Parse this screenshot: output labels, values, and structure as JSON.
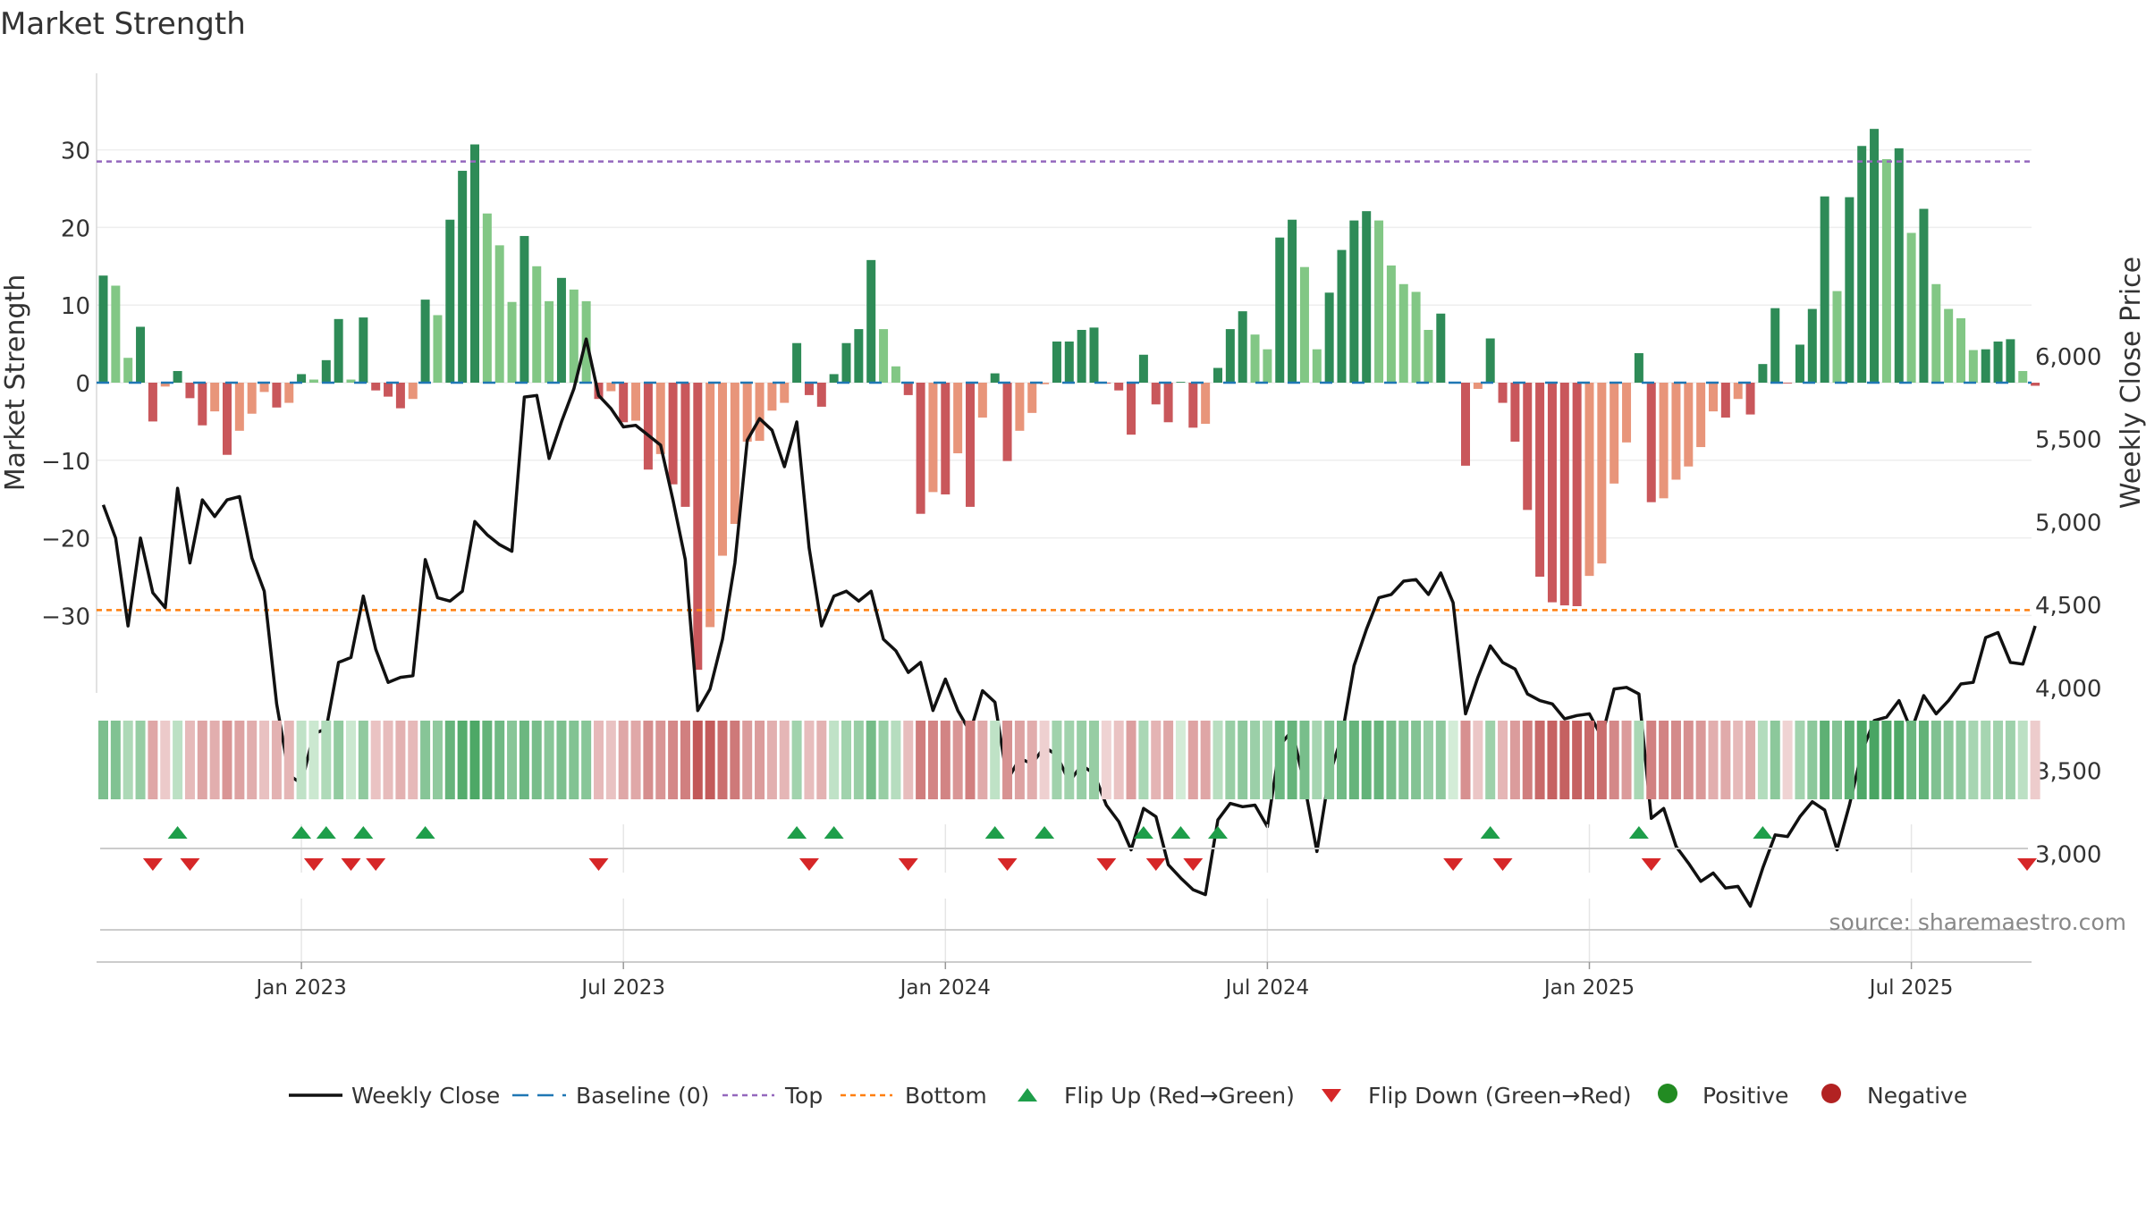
{
  "title": "Market Strength",
  "source": "source: sharemaestro.com",
  "colors": {
    "pos_dark": "#2e8b57",
    "pos_light": "#82c785",
    "neg_dark": "#c9575b",
    "neg_light": "#e8957a",
    "line": "#111111",
    "baseline": "#1f77b4",
    "top": "#9467bd",
    "bottom": "#ff7f0e",
    "flip_up": "#1e9e4a",
    "flip_down": "#d62728",
    "positive": "#228b22",
    "negative": "#b22222"
  },
  "chart_data": {
    "type": "bar+line",
    "title": "Market Strength",
    "ylabel": "Market Strength",
    "y2label": "Weekly Close Price",
    "ylim": [
      -40,
      40
    ],
    "y2lim": [
      2550,
      6200
    ],
    "yticks": [
      -30,
      -20,
      -10,
      0,
      10,
      20,
      30
    ],
    "yticklabels": [
      "−30",
      "−20",
      "−10",
      "0",
      "10",
      "20",
      "30"
    ],
    "y2ticks": [
      3000,
      3500,
      4000,
      4500,
      5000,
      5500,
      6000
    ],
    "y2ticklabels": [
      "3,000",
      "3,500",
      "4,000",
      "4,500",
      "5,000",
      "5,500",
      "6,000"
    ],
    "top_level": 28.5,
    "bottom_level": -29.3,
    "x_range_weeks": [
      0,
      157
    ],
    "xticks": [
      16,
      42,
      68,
      94,
      120,
      146
    ],
    "xticklabels": [
      "Jan 2023",
      "Jul 2023",
      "Jan 2024",
      "Jul 2024",
      "Jan 2025",
      "Jul 2025"
    ],
    "strength": [
      13.8,
      12.5,
      3.2,
      7.2,
      -5,
      -0.5,
      1.5,
      -2,
      -5.5,
      -3.7,
      -9.3,
      -6.2,
      -4,
      -1.2,
      -3.2,
      -2.6,
      1.1,
      0.4,
      2.9,
      8.2,
      0.4,
      8.4,
      -1,
      -1.8,
      -3.3,
      -2.1,
      10.7,
      8.7,
      21,
      27.3,
      30.7,
      21.8,
      17.7,
      10.4,
      18.9,
      15,
      10.5,
      13.5,
      12,
      10.5,
      -2.1,
      -1.1,
      -5.1,
      -4.9,
      -11.2,
      -9.2,
      -13.1,
      -16,
      -37,
      -31.5,
      -22.3,
      -18.2,
      -7.6,
      -7.5,
      -3.6,
      -2.6,
      5.1,
      -1.6,
      -3.1,
      1.1,
      5.1,
      6.9,
      15.8,
      6.9,
      2.1,
      -1.6,
      -16.9,
      -14.1,
      -14.4,
      -9.1,
      -16,
      -4.5,
      1.2,
      -10.1,
      -6.2,
      -3.9,
      -0.2,
      5.3,
      5.3,
      6.8,
      7.1,
      -0.1,
      -1,
      -6.7,
      3.6,
      -2.8,
      -5.1,
      0.1,
      -5.8,
      -5.3,
      1.9,
      6.9,
      9.2,
      6.2,
      4.3,
      18.7,
      21,
      14.9,
      4.3,
      11.6,
      17.1,
      20.9,
      22.1,
      20.9,
      15.1,
      12.7,
      11.7,
      6.8,
      8.9,
      0.1,
      -10.7,
      -0.8,
      5.7,
      -2.6,
      -7.6,
      -16.4,
      -25,
      -28.3,
      -28.7,
      -28.8,
      -24.9,
      -23.3,
      -13,
      -7.7,
      3.8,
      -15.4,
      -14.9,
      -12.5,
      -10.8,
      -8.3,
      -3.7,
      -4.5,
      -2.1,
      -4.1,
      2.4,
      9.6,
      -0.1,
      4.9,
      9.5,
      24,
      11.8,
      23.9,
      30.5,
      32.7,
      28.8,
      30.2,
      19.3,
      22.4,
      12.7,
      9.5,
      8.3,
      4.2,
      4.3,
      5.3,
      5.6,
      1.5,
      -0.4
    ],
    "close": [
      5100,
      4900,
      4370,
      4900,
      4570,
      4480,
      5200,
      4750,
      5130,
      5030,
      5130,
      5150,
      4780,
      4580,
      3900,
      3470,
      3420,
      3720,
      3750,
      4150,
      4180,
      4550,
      4230,
      4030,
      4060,
      4070,
      4770,
      4540,
      4520,
      4580,
      5000,
      4920,
      4860,
      4820,
      5750,
      5760,
      5380,
      5600,
      5800,
      6100,
      5760,
      5680,
      5570,
      5580,
      5520,
      5460,
      5130,
      4770,
      3860,
      3990,
      4290,
      4750,
      5490,
      5620,
      5550,
      5330,
      5600,
      4840,
      4370,
      4550,
      4580,
      4520,
      4580,
      4290,
      4220,
      4090,
      4150,
      3860,
      4050,
      3860,
      3730,
      3980,
      3910,
      3440,
      3570,
      3540,
      3640,
      3590,
      3430,
      3530,
      3480,
      3290,
      3190,
      3020,
      3270,
      3220,
      2930,
      2850,
      2780,
      2750,
      3200,
      3300,
      3280,
      3290,
      3160,
      3650,
      3740,
      3410,
      3010,
      3470,
      3700,
      4130,
      4350,
      4540,
      4560,
      4640,
      4650,
      4560,
      4690,
      4510,
      3840,
      4060,
      4250,
      4150,
      4110,
      3960,
      3920,
      3900,
      3810,
      3830,
      3840,
      3700,
      3990,
      4000,
      3960,
      3210,
      3270,
      3040,
      2940,
      2830,
      2880,
      2790,
      2800,
      2680,
      2910,
      3110,
      3100,
      3220,
      3310,
      3260,
      3020,
      3290,
      3610,
      3800,
      3820,
      3920,
      3740,
      3950,
      3840,
      3920,
      4020,
      4030,
      4300,
      4330,
      4150,
      4140,
      4370
    ],
    "flip_up_weeks": [
      6,
      16,
      18,
      21,
      26,
      56,
      59,
      72,
      76,
      84,
      87,
      90,
      112,
      124,
      134
    ],
    "flip_down_weeks": [
      4,
      7,
      17,
      20,
      22,
      40,
      57,
      65,
      73,
      81,
      85,
      88,
      109,
      113,
      125,
      156
    ],
    "legend": [
      "Weekly Close",
      "Baseline (0)",
      "Top",
      "Bottom",
      "Flip Up (Red→Green)",
      "Flip Down (Green→Red)",
      "Positive",
      "Negative"
    ],
    "legend_position": "bottom"
  }
}
